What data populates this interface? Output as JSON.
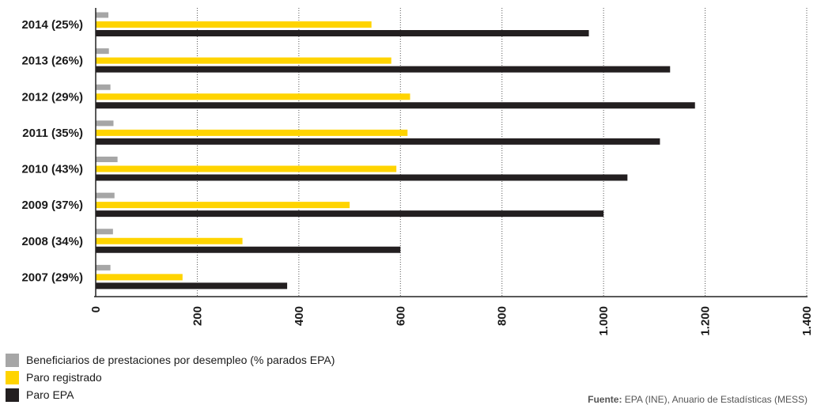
{
  "chart_data": {
    "type": "bar",
    "orientation": "horizontal",
    "title": "",
    "xlabel": "",
    "ylabel": "",
    "categories": [
      "2014 (25%)",
      "2013 (26%)",
      "2012 (29%)",
      "2011 (35%)",
      "2010 (43%)",
      "2009 (37%)",
      "2008 (34%)",
      "2007 (29%)"
    ],
    "series": [
      {
        "name": "Beneficiarios de prestaciones por desempleo (% parados EPA)",
        "color": "#a6a6a6",
        "values": [
          25,
          26,
          29,
          35,
          43,
          37,
          34,
          29
        ]
      },
      {
        "name": "Paro registrado",
        "color": "#ffd400",
        "values": [
          543,
          582,
          619,
          614,
          592,
          500,
          289,
          171
        ]
      },
      {
        "name": "Paro EPA",
        "color": "#231f20",
        "values": [
          971,
          1131,
          1180,
          1111,
          1047,
          1000,
          600,
          377
        ]
      }
    ],
    "xlim": [
      0,
      1400
    ],
    "xticks": [
      0,
      200,
      400,
      600,
      800,
      1000,
      1200,
      1400
    ],
    "xtick_labels": [
      "0",
      "200",
      "400",
      "600",
      "800",
      "1.000",
      "1.200",
      "1.400"
    ],
    "grid": "vertical dotted lines",
    "legend_position": "bottom-left"
  },
  "source": {
    "label": "Fuente:",
    "text": "EPA (INE), Anuario de Estadísticas (MESS)"
  }
}
